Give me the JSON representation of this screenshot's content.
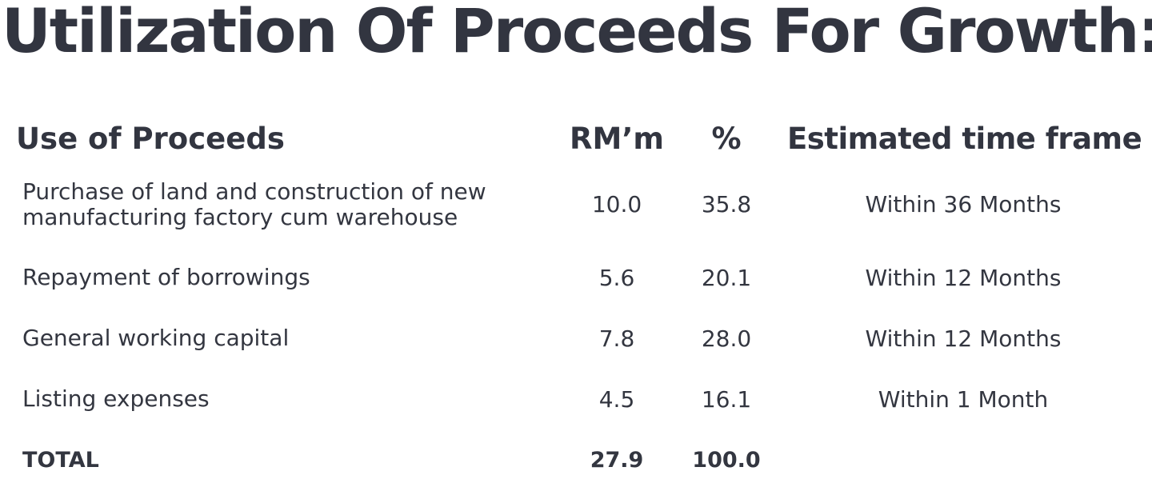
{
  "title": "Utilization Of Proceeds For Growth:",
  "table": {
    "headers": {
      "use": "Use of Proceeds",
      "rm": "RM’m",
      "pct": "%",
      "time": "Estimated time frame"
    },
    "rows": [
      {
        "use_line1": "Purchase of land and construction of new",
        "use_line2": "manufacturing factory cum warehouse",
        "rm": "10.0",
        "pct": "35.8",
        "time": "Within 36 Months"
      },
      {
        "use": "Repayment of borrowings",
        "rm": "5.6",
        "pct": "20.1",
        "time": "Within 12 Months"
      },
      {
        "use": "General working capital",
        "rm": "7.8",
        "pct": "28.0",
        "time": "Within 12 Months"
      },
      {
        "use": "Listing expenses",
        "rm": "4.5",
        "pct": "16.1",
        "time": "Within 1 Month"
      }
    ],
    "total": {
      "label": "TOTAL",
      "rm": "27.9",
      "pct": "100.0"
    }
  }
}
